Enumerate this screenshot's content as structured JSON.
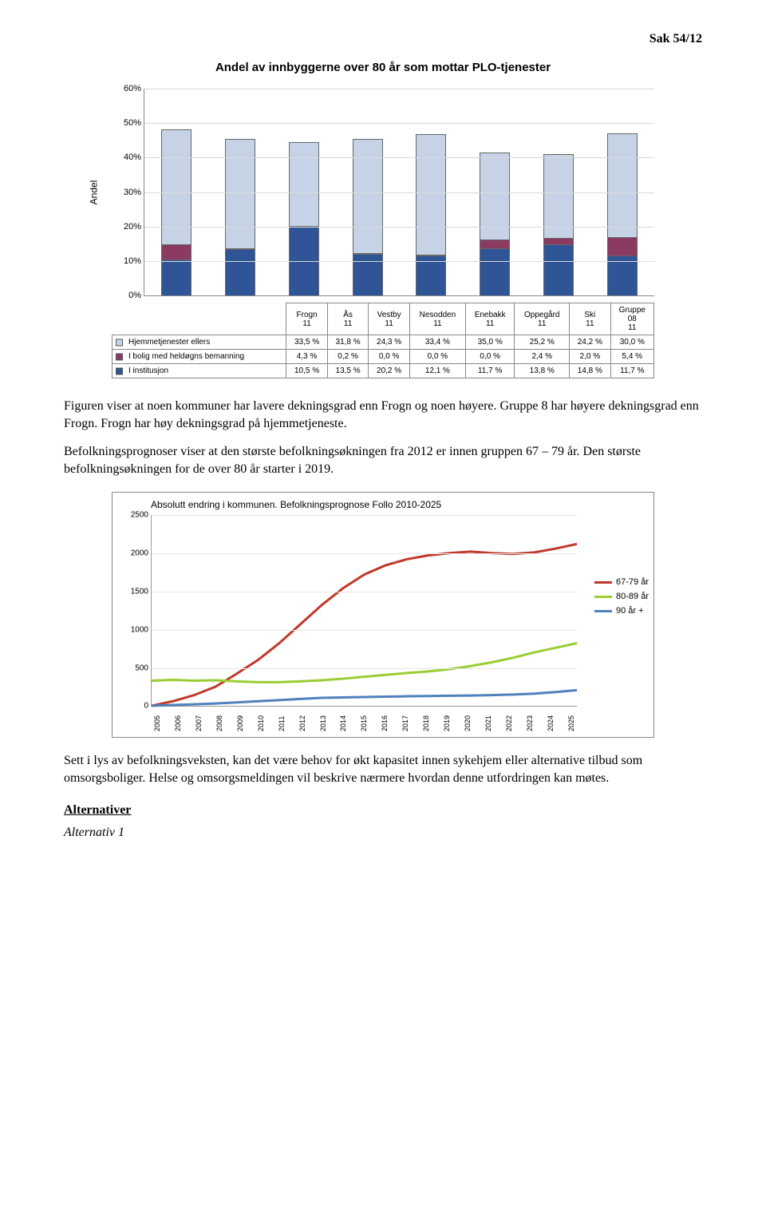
{
  "header": {
    "sak": "Sak 54/12"
  },
  "chart1": {
    "title": "Andel av innbyggerne over 80 år som mottar PLO-tjenester",
    "ylabel": "Andel",
    "ymax": 60,
    "ytick_step": 10,
    "ytick_suffix": "%",
    "categories": [
      "Frogn 11",
      "Ås 11",
      "Vestby 11",
      "Nesodden 11",
      "Enebakk 11",
      "Oppegård 11",
      "Ski 11",
      "Gruppe 08 11"
    ],
    "series": [
      {
        "key": "ellers",
        "label": "Hjemmetjenester ellers",
        "color": "#c6d3e6",
        "values": [
          "33,5 %",
          "31,8 %",
          "24,3 %",
          "33,4 %",
          "35,0 %",
          "25,2 %",
          "24,2 %",
          "30,0 %"
        ],
        "nums": [
          33.5,
          31.8,
          24.3,
          33.4,
          35.0,
          25.2,
          24.2,
          30.0
        ]
      },
      {
        "key": "bolig",
        "label": "I bolig med heldøgns bemanning",
        "color": "#8b3a62",
        "values": [
          "4,3 %",
          "0,2 %",
          "0,0 %",
          "0,0 %",
          "0,0 %",
          "2,4 %",
          "2,0 %",
          "5,4 %"
        ],
        "nums": [
          4.3,
          0.2,
          0.0,
          0.0,
          0.0,
          2.4,
          2.0,
          5.4
        ]
      },
      {
        "key": "inst",
        "label": "I institusjon",
        "color": "#2f5597",
        "values": [
          "10,5 %",
          "13,5 %",
          "20,2 %",
          "12,1 %",
          "11,7 %",
          "13,8 %",
          "14,8 %",
          "11,7 %"
        ],
        "nums": [
          10.5,
          13.5,
          20.2,
          12.1,
          11.7,
          13.8,
          14.8,
          11.7
        ]
      }
    ]
  },
  "para1": "Figuren viser at noen kommuner har lavere dekningsgrad enn Frogn og noen høyere. Gruppe 8 har høyere dekningsgrad enn Frogn. Frogn har høy dekningsgrad på hjemmetjeneste.",
  "para2": "Befolkningsprognoser viser at den største befolkningsøkningen fra 2012 er innen gruppen 67 – 79 år. Den største befolkningsøkningen for de over 80 år starter i 2019.",
  "chart2": {
    "title": "Absolutt endring i kommunen. Befolkningsprognose Follo 2010-2025",
    "ymax": 2500,
    "ytick_step": 500,
    "years": [
      "2005",
      "2006",
      "2007",
      "2008",
      "2009",
      "2010",
      "2011",
      "2012",
      "2013",
      "2014",
      "2015",
      "2016",
      "2017",
      "2018",
      "2019",
      "2020",
      "2021",
      "2022",
      "2023",
      "2024",
      "2025"
    ],
    "series": [
      {
        "label": "67-79 år",
        "color": "#c0392b",
        "width": 3,
        "vals": [
          0,
          60,
          140,
          250,
          420,
          600,
          820,
          1070,
          1320,
          1540,
          1720,
          1840,
          1920,
          1970,
          2000,
          2020,
          2000,
          1990,
          2010,
          2060,
          2120
        ]
      },
      {
        "label": "80-89 år",
        "color": "#9acd32",
        "width": 3,
        "vals": [
          330,
          340,
          330,
          335,
          320,
          310,
          310,
          320,
          335,
          355,
          380,
          405,
          430,
          450,
          480,
          520,
          570,
          630,
          700,
          760,
          820
        ]
      },
      {
        "label": "90 år +",
        "color": "#4f81bd",
        "width": 3,
        "vals": [
          0,
          10,
          20,
          30,
          45,
          60,
          75,
          90,
          105,
          110,
          115,
          120,
          125,
          128,
          132,
          135,
          140,
          148,
          160,
          180,
          205
        ]
      }
    ]
  },
  "para3": "Sett i lys av befolkningsveksten, kan det være behov for økt kapasitet innen sykehjem eller alternative tilbud som omsorgsboliger. Helse og omsorgsmeldingen vil beskrive nærmere hvordan denne utfordringen kan møtes.",
  "alternativer": {
    "heading": "Alternativer",
    "alt1": "Alternativ 1"
  }
}
